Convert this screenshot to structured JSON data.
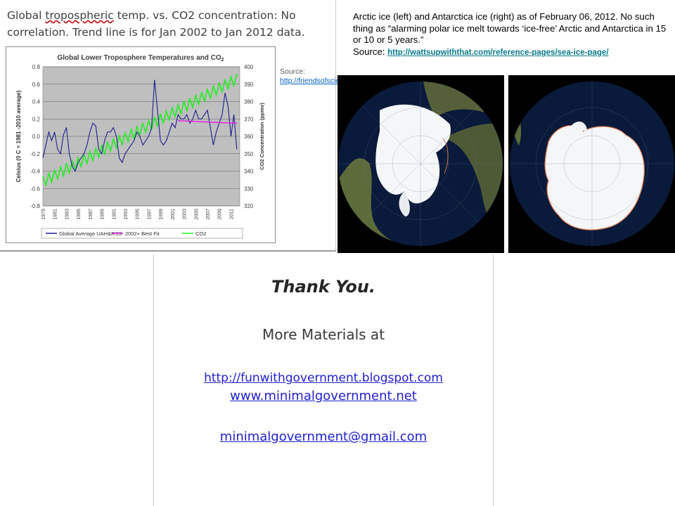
{
  "left_slide": {
    "title_pre": "Global ",
    "title_underlined": "tropospheric",
    "title_post": " temp. vs. CO2 concentration: No correlation. Trend line is for Jan 2002 to Jan 2012 data.",
    "source_label": "Source:",
    "source_link": "http://friendsofscience.org/"
  },
  "chart_data": {
    "type": "line",
    "title": "Global Lower Troposphere Temperatures and CO",
    "title_subscript": "2",
    "ylabel": "Celsius (0 C = 1981 -2010 average)",
    "y2label": "CO2 Concentration (ppmv)",
    "ylim": [
      -0.8,
      0.8
    ],
    "y2lim": [
      320,
      400
    ],
    "yticks": [
      "0.8",
      "0.6",
      "0.4",
      "0.2",
      "0.0",
      "-0.2",
      "-0.4",
      "-0.6",
      "-0.8"
    ],
    "y2ticks": [
      "400",
      "390",
      "380",
      "370",
      "360",
      "350",
      "340",
      "330",
      "320"
    ],
    "xticks": [
      "1979",
      "1981",
      "1983",
      "1985",
      "1987",
      "1989",
      "1991",
      "1993",
      "1995",
      "1997",
      "1999",
      "2001",
      "2003",
      "2005",
      "2007",
      "2009",
      "2011"
    ],
    "grid": true,
    "legend_position": "bottom",
    "series": [
      {
        "name": "Global Average UAH&RSS",
        "color": "#1f1f8f",
        "x": [
          1979,
          1979.5,
          1980,
          1980.5,
          1981,
          1981.5,
          1982,
          1982.5,
          1983,
          1983.5,
          1984,
          1984.5,
          1985,
          1985.5,
          1986,
          1986.5,
          1987,
          1987.5,
          1988,
          1988.5,
          1989,
          1989.5,
          1990,
          1990.5,
          1991,
          1991.5,
          1992,
          1992.5,
          1993,
          1993.5,
          1994,
          1994.5,
          1995,
          1995.5,
          1996,
          1996.5,
          1997,
          1997.5,
          1998,
          1998.5,
          1999,
          1999.5,
          2000,
          2000.5,
          2001,
          2001.5,
          2002,
          2002.5,
          2003,
          2003.5,
          2004,
          2004.5,
          2005,
          2005.5,
          2006,
          2006.5,
          2007,
          2007.5,
          2008,
          2008.5,
          2009,
          2009.5,
          2010,
          2010.5,
          2011,
          2011.5,
          2012
        ],
        "y": [
          -0.25,
          -0.1,
          0.05,
          -0.05,
          0.05,
          -0.15,
          -0.2,
          0.02,
          0.1,
          -0.2,
          -0.35,
          -0.4,
          -0.3,
          -0.25,
          -0.2,
          -0.1,
          0.05,
          0.15,
          0.12,
          -0.15,
          -0.2,
          -0.05,
          0.05,
          0.05,
          0.1,
          0.0,
          -0.25,
          -0.3,
          -0.2,
          -0.15,
          -0.1,
          -0.05,
          0.05,
          0.0,
          -0.1,
          -0.05,
          0.0,
          0.1,
          0.65,
          0.3,
          -0.05,
          -0.1,
          -0.05,
          0.05,
          0.15,
          0.1,
          0.25,
          0.2,
          0.2,
          0.25,
          0.15,
          0.2,
          0.3,
          0.2,
          0.2,
          0.25,
          0.3,
          0.1,
          -0.1,
          0.05,
          0.15,
          0.25,
          0.5,
          0.35,
          0.0,
          0.25,
          -0.15
        ]
      },
      {
        "name": "2002+ Best Fit",
        "color": "#e020e0",
        "x": [
          2002,
          2012
        ],
        "y": [
          0.18,
          0.15
        ]
      },
      {
        "name": "CO2",
        "color": "#22ee22",
        "x": [
          1979,
          2012
        ],
        "y2": [
          334,
          393
        ],
        "seasonal_amplitude": 3
      }
    ]
  },
  "right_slide": {
    "caption": "Arctic ice (left) and Antarctica ice (right) as of February 06, 2012. No such thing as “alarming polar ice melt towards ‘ice-free’ Arctic and Antarctica in 15 or 10 or 5 years.”",
    "source_label": "Source: ",
    "source_link": "http://wattsupwiththat.com/reference-pages/sea-ice-page/"
  },
  "bottom_slide": {
    "thanks": "Thank You.",
    "more": "More Materials at",
    "link1": "http://funwithgovernment.blogspot.com",
    "link2": "www.minimalgovernment.net",
    "link3": "minimalgovernment@gmail.com"
  },
  "colors": {
    "plot_bg": "#bfbfbf",
    "ocean": "#0a1a3a",
    "ice": "#ffffff",
    "land": "#5d6b3a",
    "link": "#1f1fd0"
  }
}
